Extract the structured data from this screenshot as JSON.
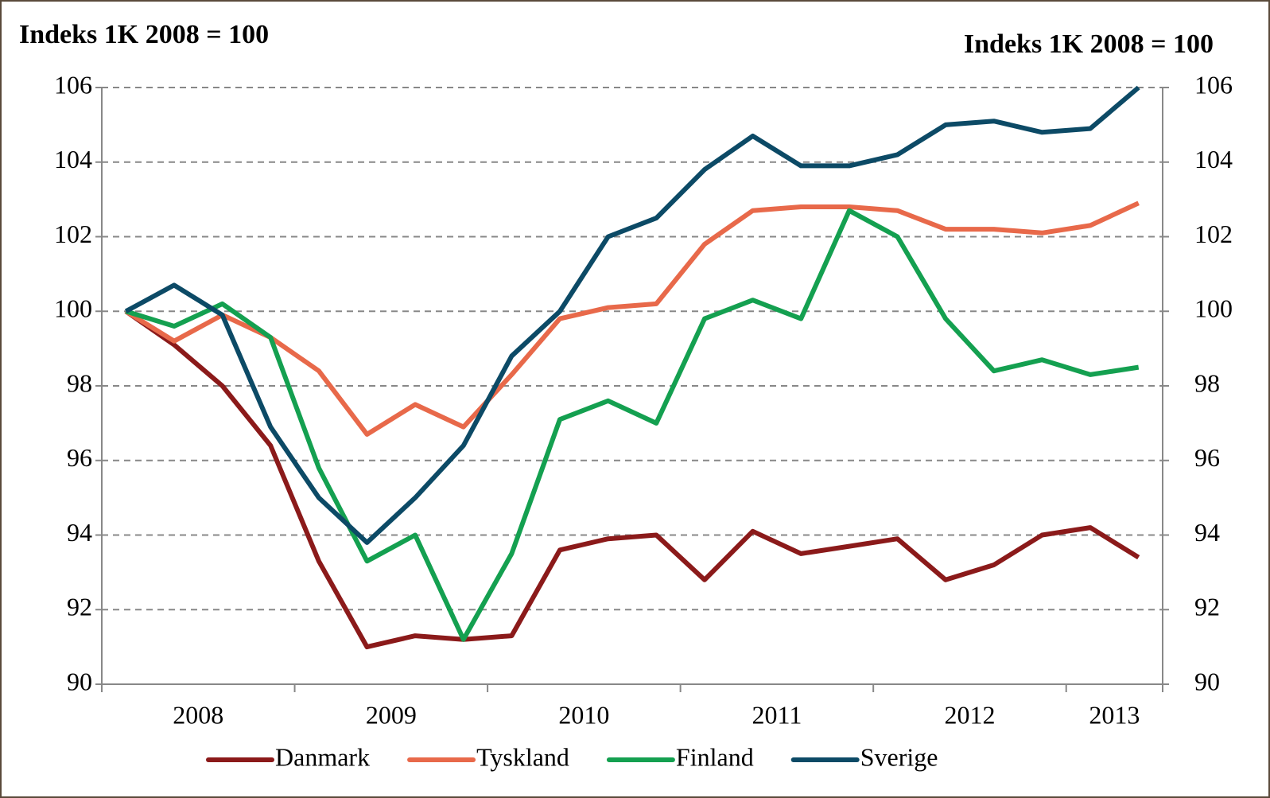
{
  "chart_data": {
    "type": "line",
    "title": "Indeks 1K 2008 = 100",
    "y2_title": "Indeks 1K 2008 = 100",
    "categories": [
      "2008",
      null,
      null,
      null,
      "2009",
      null,
      null,
      null,
      "2010",
      null,
      null,
      null,
      "2011",
      null,
      null,
      null,
      "2012",
      null,
      null,
      null,
      "2013",
      null
    ],
    "series": [
      {
        "name": "Danmark",
        "color": "#8b1a1a",
        "values": [
          100,
          99.1,
          98.0,
          96.4,
          93.3,
          91.0,
          91.3,
          91.2,
          91.3,
          93.6,
          93.9,
          94.0,
          92.8,
          94.1,
          93.5,
          93.7,
          93.9,
          92.8,
          93.2,
          94.0,
          94.2,
          93.4
        ]
      },
      {
        "name": "Tyskland",
        "color": "#e8694a",
        "values": [
          100,
          99.2,
          99.9,
          99.3,
          98.4,
          96.7,
          97.5,
          96.9,
          98.3,
          99.8,
          100.1,
          100.2,
          101.8,
          102.7,
          102.8,
          102.8,
          102.7,
          102.2,
          102.2,
          102.1,
          102.3,
          102.9
        ]
      },
      {
        "name": "Finland",
        "color": "#14a050",
        "values": [
          100,
          99.6,
          100.2,
          99.3,
          95.8,
          93.3,
          94.0,
          91.2,
          93.5,
          97.1,
          97.6,
          97.0,
          99.8,
          100.3,
          99.8,
          102.7,
          102.0,
          99.8,
          98.4,
          98.7,
          98.3,
          98.5
        ]
      },
      {
        "name": "Sverige",
        "color": "#0c4a66",
        "values": [
          100,
          100.7,
          99.9,
          96.9,
          95.0,
          93.8,
          95.0,
          96.4,
          98.8,
          100.0,
          102.0,
          102.5,
          103.8,
          104.7,
          103.9,
          103.9,
          104.2,
          105.0,
          105.1,
          104.8,
          104.9,
          106.0
        ]
      }
    ],
    "ylim": [
      90,
      106
    ],
    "yticks": [
      90,
      92,
      94,
      96,
      98,
      100,
      102,
      104,
      106
    ],
    "y2lim": [
      90,
      106
    ],
    "y2ticks": [
      90,
      92,
      94,
      96,
      98,
      100,
      102,
      104,
      106
    ],
    "grid": true,
    "legend": "bottom"
  }
}
